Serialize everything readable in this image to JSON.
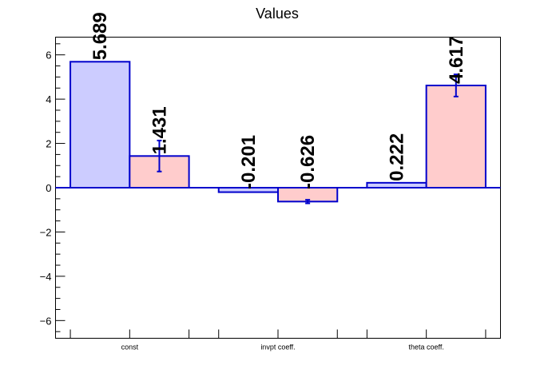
{
  "chart_data": {
    "type": "bar",
    "title": "Values",
    "xlabel": "",
    "ylabel": "",
    "categories": [
      "const",
      "invpt coeff.",
      "theta coeff."
    ],
    "series": [
      {
        "values": [
          5.689,
          -0.201,
          0.222
        ],
        "labels": [
          "5.689",
          "-0.201",
          "0.222"
        ],
        "errors": [
          0,
          0,
          0
        ],
        "fill": "#ccccff",
        "stroke": "#0000cc"
      },
      {
        "values": [
          1.431,
          -0.626,
          4.617
        ],
        "labels": [
          "1.431",
          "-0.626",
          "4.617"
        ],
        "errors": [
          0.7,
          0.08,
          0.5
        ],
        "fill": "#ffcccc",
        "stroke": "#0000cc"
      }
    ],
    "ylim": [
      -6.8,
      6.8
    ],
    "yticks": [
      -6,
      -4,
      -2,
      0,
      2,
      4,
      6
    ],
    "ytick_labels": [
      "−6",
      "−4",
      "−2",
      "0",
      "2",
      "4",
      "6"
    ],
    "grid": false,
    "legend": "none"
  }
}
